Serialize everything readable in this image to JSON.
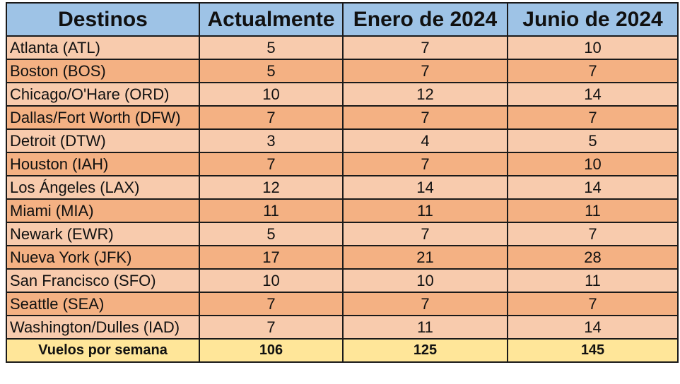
{
  "chart_data": {
    "type": "table",
    "columns": [
      "Destinos",
      "Actualmente",
      "Enero de 2024",
      "Junio de 2024"
    ],
    "rows": [
      {
        "destino": "Atlanta (ATL)",
        "values": [
          5,
          7,
          10
        ]
      },
      {
        "destino": "Boston (BOS)",
        "values": [
          5,
          7,
          7
        ]
      },
      {
        "destino": "Chicago/O'Hare (ORD)",
        "values": [
          10,
          12,
          14
        ]
      },
      {
        "destino": "Dallas/Fort Worth (DFW)",
        "values": [
          7,
          7,
          7
        ]
      },
      {
        "destino": "Detroit (DTW)",
        "values": [
          3,
          4,
          5
        ]
      },
      {
        "destino": "Houston (IAH)",
        "values": [
          7,
          7,
          10
        ]
      },
      {
        "destino": "Los Ángeles (LAX)",
        "values": [
          12,
          14,
          14
        ]
      },
      {
        "destino": "Miami (MIA)",
        "values": [
          11,
          11,
          11
        ]
      },
      {
        "destino": "Newark (EWR)",
        "values": [
          5,
          7,
          7
        ]
      },
      {
        "destino": "Nueva York (JFK)",
        "values": [
          17,
          21,
          28
        ]
      },
      {
        "destino": "San Francisco (SFO)",
        "values": [
          10,
          10,
          11
        ]
      },
      {
        "destino": "Seattle (SEA)",
        "values": [
          7,
          7,
          7
        ]
      },
      {
        "destino": "Washington/Dulles (IAD)",
        "values": [
          7,
          11,
          14
        ]
      }
    ],
    "total": {
      "label": "Vuelos por semana",
      "values": [
        106,
        125,
        145
      ]
    },
    "colors": {
      "header": "#9ec3e6",
      "row_light": "#f8cbad",
      "row_dark": "#f4b183",
      "total_row": "#ffe699",
      "border": "#1a1a1a"
    }
  }
}
